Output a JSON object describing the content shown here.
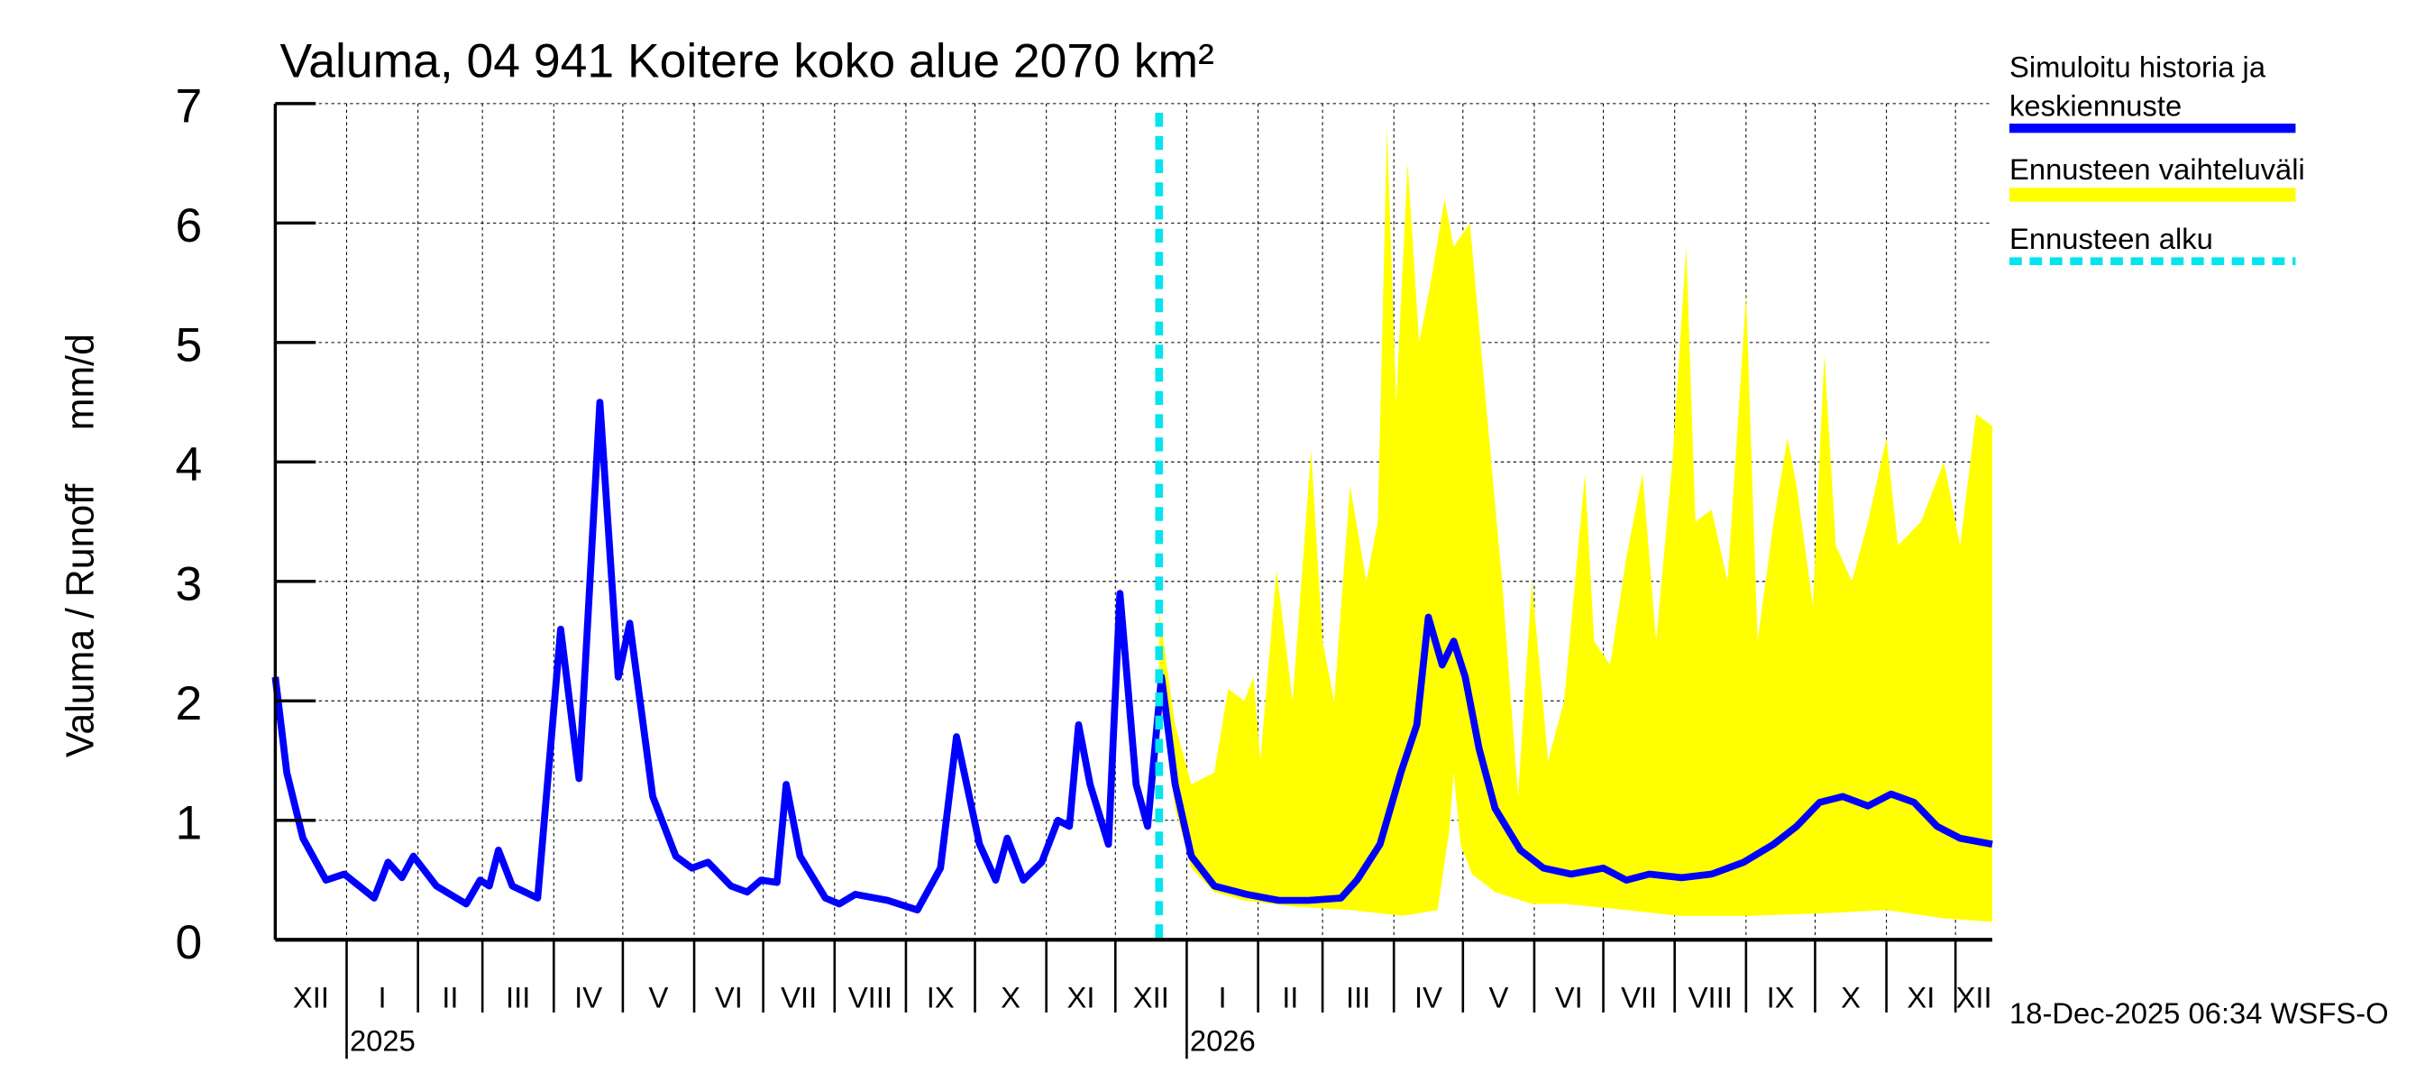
{
  "chart_data": {
    "type": "line",
    "title": "Valuma, 04 941 Koitere koko alue 2070 km²",
    "ylabel": "Valuma / Runoff     mm/d",
    "ylim": [
      0,
      7
    ],
    "yticks": [
      "0",
      "1",
      "2",
      "3",
      "4",
      "5",
      "6",
      "7"
    ],
    "x_start_date": "2024-12-01",
    "x_end_day": 746,
    "x_unit": "days since 2024-12-01",
    "grid": true,
    "legend_placement": "right",
    "month_labels": [
      "XII",
      "I",
      "II",
      "III",
      "IV",
      "V",
      "VI",
      "VII",
      "VIII",
      "IX",
      "X",
      "XI",
      "XII",
      "I",
      "II",
      "III",
      "IV",
      "V",
      "VI",
      "VII",
      "VIII",
      "IX",
      "X",
      "XI",
      "XII"
    ],
    "year_labels": [
      "2025",
      "2026"
    ],
    "forecast_start_day": 384,
    "timestamp": "18-Dec-2025 06:34 WSFS-O",
    "legend": {
      "simulated_line1": "Simuloitu historia ja",
      "simulated_line2": "keskiennuste",
      "range": "Ennusteen vaihteluväli",
      "forecast_start": "Ennusteen alku"
    },
    "colors": {
      "simulated": "#0000ff",
      "range": "#ffff00",
      "forecast_start": "#00e5ee"
    },
    "series": [
      {
        "name": "Simuloitu historia ja keskiennuste",
        "x": [
          0,
          5,
          12,
          22,
          30,
          43,
          49,
          55,
          60,
          70,
          83,
          89,
          93,
          97,
          103,
          114,
          124,
          132,
          141,
          149,
          154,
          164,
          174,
          181,
          188,
          198,
          205,
          211,
          218,
          222,
          228,
          239,
          245,
          252,
          266,
          279,
          289,
          296,
          306,
          313,
          318,
          325,
          333,
          340,
          345,
          349,
          354,
          362,
          367,
          374,
          379,
          385,
          391,
          398,
          408,
          422,
          436,
          449,
          463,
          470,
          480,
          489,
          496,
          501,
          507,
          512,
          517,
          523,
          530,
          541,
          551,
          563,
          577,
          587,
          597,
          611,
          624,
          638,
          651,
          661,
          671,
          681,
          692,
          702,
          712,
          722,
          732,
          746
        ],
        "values": [
          2.2,
          1.4,
          0.85,
          0.5,
          0.55,
          0.35,
          0.65,
          0.52,
          0.7,
          0.45,
          0.3,
          0.5,
          0.45,
          0.75,
          0.45,
          0.35,
          2.6,
          1.35,
          4.5,
          2.2,
          2.65,
          1.2,
          0.7,
          0.6,
          0.65,
          0.45,
          0.4,
          0.5,
          0.48,
          1.3,
          0.7,
          0.35,
          0.3,
          0.38,
          0.33,
          0.25,
          0.6,
          1.7,
          0.8,
          0.5,
          0.85,
          0.5,
          0.65,
          1.0,
          0.95,
          1.8,
          1.3,
          0.8,
          2.9,
          1.3,
          0.95,
          2.2,
          1.3,
          0.7,
          0.45,
          0.38,
          0.33,
          0.33,
          0.35,
          0.5,
          0.8,
          1.4,
          1.8,
          2.7,
          2.3,
          2.5,
          2.2,
          1.6,
          1.1,
          0.75,
          0.6,
          0.55,
          0.6,
          0.5,
          0.55,
          0.52,
          0.55,
          0.65,
          0.8,
          0.95,
          1.15,
          1.2,
          1.12,
          1.22,
          1.15,
          0.95,
          0.85,
          0.8
        ]
      },
      {
        "name": "Ennusteen vaihteluväli (upper)",
        "x": [
          384,
          391,
          398,
          408,
          414,
          421,
          425,
          428,
          435,
          442,
          450,
          455,
          460,
          467,
          474,
          479,
          483,
          487,
          492,
          497,
          502,
          508,
          512,
          519,
          526,
          533,
          540,
          546,
          553,
          560,
          569,
          573,
          580,
          587,
          594,
          600,
          607,
          613,
          617,
          624,
          631,
          639,
          644,
          651,
          657,
          661,
          668,
          673,
          678,
          685,
          692,
          700,
          705,
          715,
          725,
          732,
          739,
          746
        ],
        "values": [
          2.75,
          1.8,
          1.3,
          1.4,
          2.1,
          2.0,
          2.2,
          1.5,
          3.1,
          2.0,
          4.1,
          2.5,
          2.0,
          3.8,
          3.0,
          3.5,
          6.8,
          4.5,
          6.5,
          5.0,
          5.5,
          6.2,
          5.8,
          6.0,
          4.5,
          3.0,
          1.2,
          3.0,
          1.5,
          2.0,
          3.9,
          2.5,
          2.3,
          3.2,
          3.9,
          2.5,
          4.0,
          5.8,
          3.5,
          3.6,
          3.0,
          5.4,
          2.5,
          3.5,
          4.2,
          3.8,
          2.8,
          4.9,
          3.3,
          3.0,
          3.5,
          4.2,
          3.3,
          3.5,
          4.0,
          3.3,
          4.4,
          4.3
        ]
      },
      {
        "name": "Ennusteen vaihteluväli (lower)",
        "x": [
          384,
          391,
          398,
          408,
          421,
          442,
          467,
          490,
          505,
          510,
          512,
          515,
          520,
          530,
          546,
          560,
          587,
          610,
          640,
          670,
          700,
          725,
          746
        ],
        "values": [
          2.2,
          1.1,
          0.6,
          0.4,
          0.33,
          0.28,
          0.25,
          0.2,
          0.25,
          0.9,
          1.4,
          0.8,
          0.55,
          0.4,
          0.3,
          0.3,
          0.25,
          0.2,
          0.2,
          0.22,
          0.25,
          0.18,
          0.15
        ]
      }
    ]
  }
}
